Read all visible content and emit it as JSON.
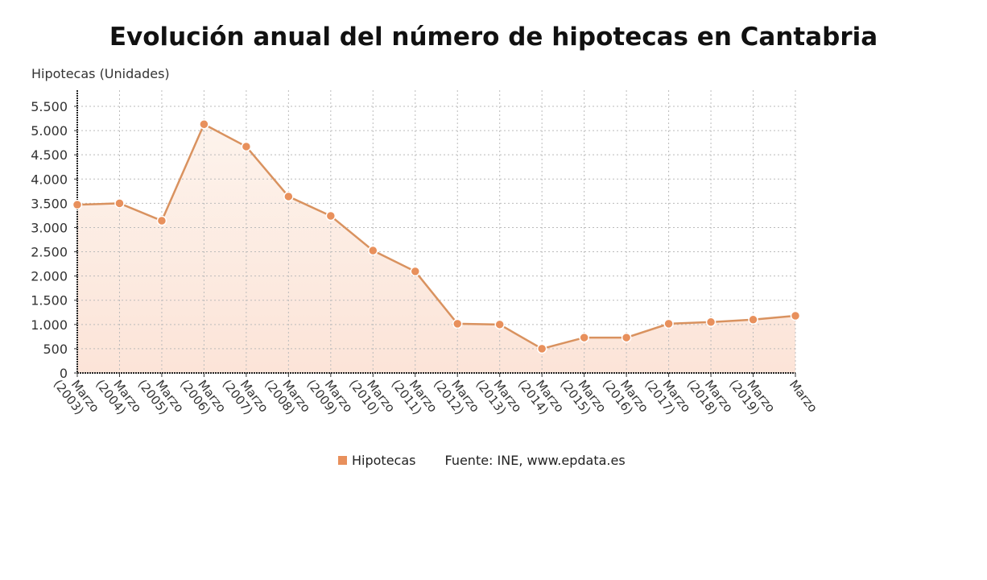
{
  "chart_data": {
    "type": "area",
    "title": "Evolución anual del número de hipotecas en Cantabria",
    "ylabel": "Hipotecas (Unidades)",
    "xlabel": "",
    "categories": [
      "Marzo (2003)",
      "Marzo (2004)",
      "Marzo (2005)",
      "Marzo (2006)",
      "Marzo (2007)",
      "Marzo (2008)",
      "Marzo (2009)",
      "Marzo (2010)",
      "Marzo (2011)",
      "Marzo (2012)",
      "Marzo (2013)",
      "Marzo (2014)",
      "Marzo (2015)",
      "Marzo (2016)",
      "Marzo (2017)",
      "Marzo (2018)",
      "Marzo (2019)",
      "Marzo"
    ],
    "series": [
      {
        "name": "Hipotecas",
        "values": [
          3470,
          3500,
          3140,
          5130,
          4670,
          3640,
          3240,
          2525,
          2095,
          1015,
          1000,
          500,
          730,
          730,
          1015,
          1050,
          1100,
          1180
        ],
        "color": "#e8905c"
      }
    ],
    "ylim": [
      0,
      5500
    ],
    "yticks": [
      0,
      500,
      1000,
      1500,
      2000,
      2500,
      3000,
      3500,
      4000,
      4500,
      5000,
      5500
    ],
    "ytick_labels": [
      "0",
      "500",
      "1.000",
      "1.500",
      "2.000",
      "2.500",
      "3.000",
      "3.500",
      "4.000",
      "4.500",
      "5.000",
      "5.500"
    ],
    "grid": true,
    "legend": "bottom",
    "source": "Fuente: INE, www.epdata.es"
  }
}
